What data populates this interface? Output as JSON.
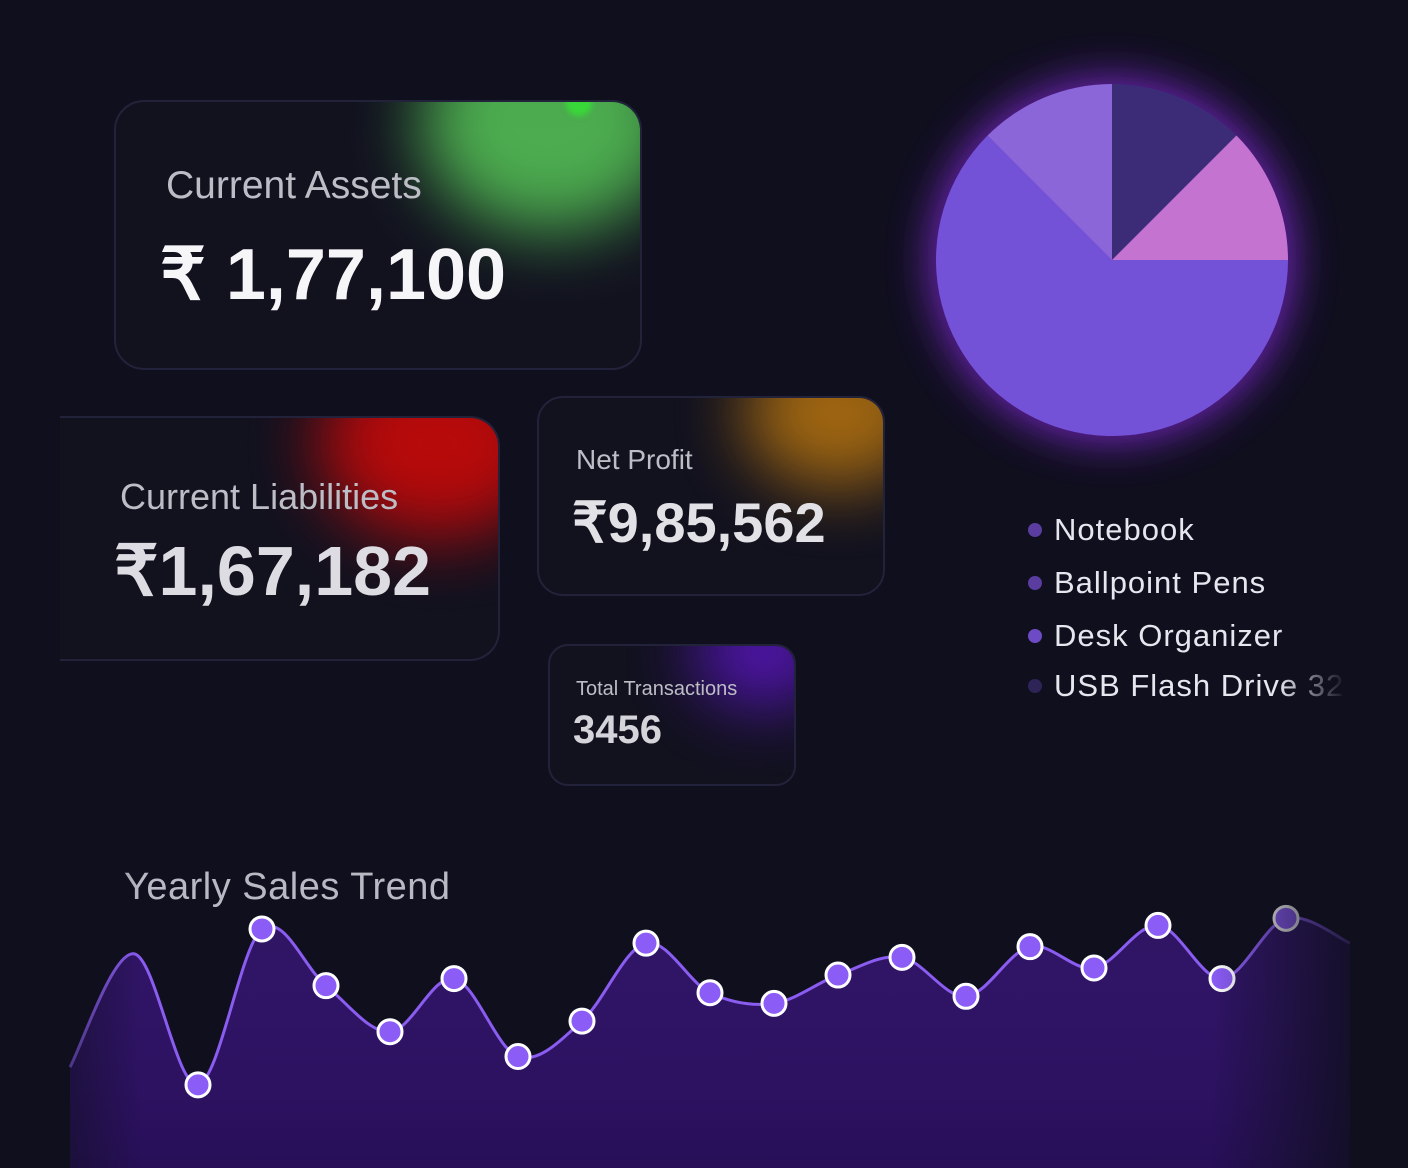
{
  "cards": {
    "current_assets": {
      "label": "Current Assets",
      "value": "₹ 1,77,100",
      "glow_color": "#5bd35b"
    },
    "current_liabilities": {
      "label": "Current Liabilities",
      "value": "₹1,67,182",
      "glow_color": "#c00a0a"
    },
    "net_profit": {
      "label": "Net Profit",
      "value": "₹9,85,562",
      "glow_color": "#b07010"
    },
    "total_transactions": {
      "label": "Total Transactions",
      "value": "3456",
      "glow_color": "#5a16c0"
    }
  },
  "chart_data": [
    {
      "type": "pie",
      "labels": [
        "Notebook",
        "Ballpoint Pens",
        "Desk Organizer",
        "USB Flash Drive 32"
      ],
      "values": [
        62.5,
        12.5,
        12.5,
        12.5
      ],
      "colors": [
        "#7452d8",
        "#8a66d8",
        "#3c2c78",
        "#c474d0"
      ],
      "legend": "right-bottom"
    },
    {
      "type": "area",
      "title": "Yearly Sales Trend",
      "values": [
        2.0,
        5.2,
        1.5,
        5.9,
        4.3,
        3.0,
        4.5,
        2.3,
        3.3,
        5.5,
        4.1,
        3.8,
        4.6,
        5.1,
        4.0,
        5.4,
        4.8,
        6.0,
        4.5,
        6.2,
        5.5
      ],
      "ylim": [
        0,
        7
      ],
      "grid": false,
      "color": "#8b5cf6"
    }
  ],
  "legend": {
    "items": [
      {
        "label": "Notebook",
        "dot_color": "#5b3da0"
      },
      {
        "label": "Ballpoint Pens",
        "dot_color": "#5b3da0"
      },
      {
        "label": "Desk Organizer",
        "dot_color": "#6d4bc4"
      },
      {
        "label": "USB Flash Drive 32",
        "dot_color": "#2e2458"
      }
    ]
  },
  "trend": {
    "title": "Yearly Sales Trend"
  }
}
